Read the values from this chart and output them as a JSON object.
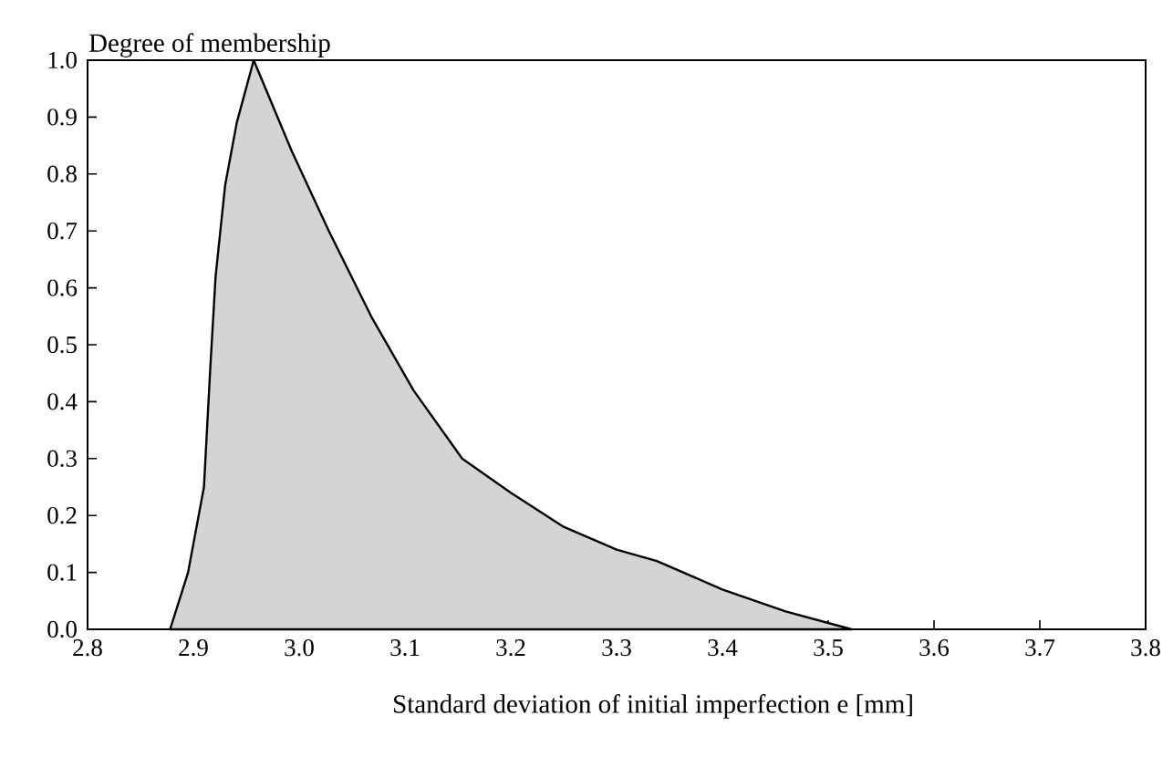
{
  "chart_data": {
    "type": "area",
    "xlabel": "Standard deviation of initial imperfection e  [mm]",
    "ylabel": "Degree of membership",
    "x": [
      2.878,
      2.895,
      2.91,
      2.916,
      2.921,
      2.93,
      2.941,
      2.957,
      2.993,
      3.028,
      3.068,
      3.108,
      3.154,
      3.2,
      3.25,
      3.3,
      3.338,
      3.4,
      3.459,
      3.522
    ],
    "values": [
      0,
      0.1,
      0.25,
      0.46,
      0.62,
      0.78,
      0.89,
      1.0,
      0.84,
      0.7,
      0.55,
      0.42,
      0.3,
      0.24,
      0.18,
      0.14,
      0.12,
      0.07,
      0.032,
      0
    ],
    "color": "#d4d4d4",
    "xlim": [
      2.8,
      3.8
    ],
    "ylim": [
      0,
      1.0
    ],
    "xticks": [
      2.8,
      2.9,
      {
        "value": 3.0,
        "label": "3.0"
      },
      3.1,
      3.2,
      3.3,
      3.4,
      3.5,
      3.6,
      3.7,
      3.8
    ],
    "yticks": [
      {
        "value": 0,
        "label": "0.0"
      },
      0.1,
      0.2,
      0.3,
      0.4,
      0.5,
      0.6,
      0.7,
      0.8,
      0.9,
      {
        "value": 1.0,
        "label": "1.0"
      }
    ],
    "grid": false,
    "marker": "none",
    "line_style": "solid"
  }
}
